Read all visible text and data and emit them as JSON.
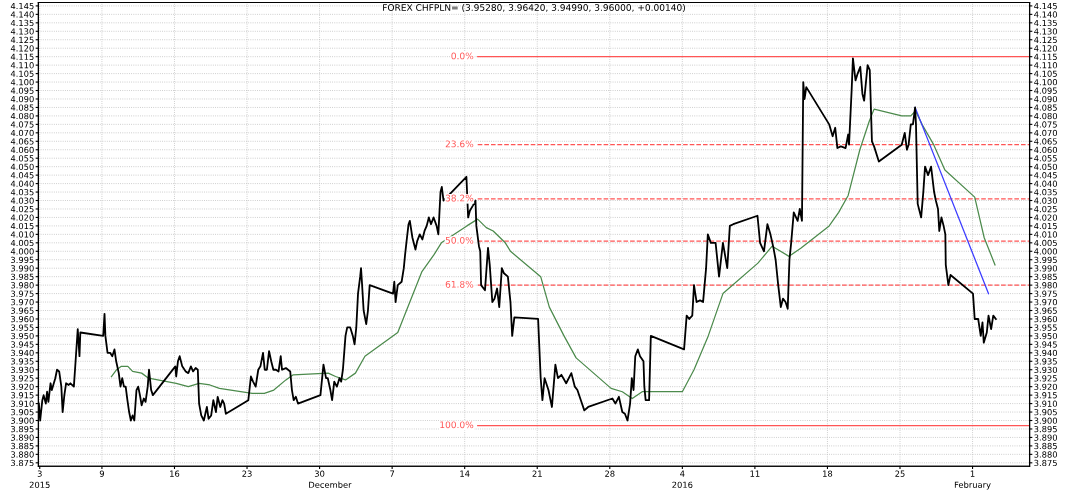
{
  "chart_data": {
    "type": "line",
    "title": "FOREX CHFPLN= (3.95280, 3.96420, 3.94990, 3.96000, +0.00140)",
    "xlim": [
      "2015-11-02T21:00",
      "2016-02-06T12:00"
    ],
    "xticks": [
      {
        "value": "2015-11-03",
        "label": "3"
      },
      {
        "value": "2015-11-09",
        "label": "9"
      },
      {
        "value": "2015-11-16",
        "label": "16"
      },
      {
        "value": "2015-11-23",
        "label": "23"
      },
      {
        "value": "2015-11-30",
        "label": "30"
      },
      {
        "value": "2015-12-07",
        "label": "7"
      },
      {
        "value": "2015-12-14",
        "label": "14"
      },
      {
        "value": "2015-12-21",
        "label": "21"
      },
      {
        "value": "2015-12-28",
        "label": "28"
      },
      {
        "value": "2016-01-04",
        "label": "4"
      },
      {
        "value": "2016-01-11",
        "label": "11"
      },
      {
        "value": "2016-01-18",
        "label": "18"
      },
      {
        "value": "2016-01-25",
        "label": "25"
      },
      {
        "value": "2016-02-01",
        "label": "1"
      }
    ],
    "x2lim": [
      "2015-11-02T21:00",
      "2016-02-06T12:00"
    ],
    "x2ticks": [
      {
        "value": "2015-11-03",
        "label": "2015"
      },
      {
        "value": "2015-12-01",
        "label": "December"
      },
      {
        "value": "2016-01-04",
        "label": "2016"
      },
      {
        "value": "2016-02-01",
        "label": "February"
      }
    ],
    "ylim": [
      3.873,
      4.147
    ],
    "yticks": [
      3.875,
      {
        "value": 3.88,
        "label": "3.880"
      },
      3.885,
      {
        "value": 3.89,
        "label": "3.890"
      },
      3.895,
      {
        "value": 3.9,
        "label": "3.900"
      },
      3.905,
      {
        "value": 3.91,
        "label": "3.910"
      },
      3.915,
      {
        "value": 3.92,
        "label": "3.920"
      },
      3.925,
      {
        "value": 3.93,
        "label": "3.930"
      },
      3.935,
      {
        "value": 3.94,
        "label": "3.940"
      },
      3.945,
      {
        "value": 3.95,
        "label": "3.950"
      },
      3.955,
      {
        "value": 3.96,
        "label": "3.960"
      },
      3.965,
      {
        "value": 3.97,
        "label": "3.970"
      },
      3.975,
      {
        "value": 3.98,
        "label": "3.980"
      },
      3.985,
      {
        "value": 3.99,
        "label": "3.990"
      },
      3.995,
      {
        "value": 4.0,
        "label": "4.000"
      },
      4.005,
      {
        "value": 4.01,
        "label": "4.010"
      },
      4.015,
      {
        "value": 4.02,
        "label": "4.020"
      },
      4.025,
      {
        "value": 4.03,
        "label": "4.030"
      },
      4.035,
      {
        "value": 4.04,
        "label": "4.040"
      },
      4.045,
      {
        "value": 4.05,
        "label": "4.050"
      },
      4.055,
      {
        "value": 4.06,
        "label": "4.060"
      },
      4.065,
      {
        "value": 4.07,
        "label": "4.070"
      },
      4.075,
      {
        "value": 4.08,
        "label": "4.080"
      },
      4.085,
      {
        "value": 4.09,
        "label": "4.090"
      },
      4.095,
      {
        "value": 4.1,
        "label": "4.100"
      },
      4.105,
      {
        "value": 4.11,
        "label": "4.110"
      },
      4.115,
      {
        "value": 4.12,
        "label": "4.120"
      },
      4.125,
      {
        "value": 4.13,
        "label": "4.130"
      },
      4.135,
      {
        "value": 4.14,
        "label": "4.140"
      },
      4.145
    ],
    "y2lim": [
      3.873,
      4.147
    ],
    "y2ticks": [
      3.875,
      {
        "value": 3.88,
        "label": "3.880"
      },
      3.885,
      {
        "value": 3.89,
        "label": "3.890"
      },
      3.895,
      {
        "value": 3.9,
        "label": "3.900"
      },
      3.905,
      {
        "value": 3.91,
        "label": "3.910"
      },
      3.915,
      {
        "value": 3.92,
        "label": "3.920"
      },
      3.925,
      {
        "value": 3.93,
        "label": "3.930"
      },
      3.935,
      {
        "value": 3.94,
        "label": "3.940"
      },
      3.945,
      {
        "value": 3.95,
        "label": "3.950"
      },
      3.955,
      {
        "value": 3.96,
        "label": "3.960"
      },
      3.965,
      {
        "value": 3.97,
        "label": "3.970"
      },
      3.975,
      {
        "value": 3.98,
        "label": "3.980"
      },
      3.985,
      {
        "value": 3.99,
        "label": "3.990"
      },
      3.995,
      {
        "value": 4.0,
        "label": "4.000"
      },
      4.005,
      {
        "value": 4.01,
        "label": "4.010"
      },
      4.015,
      {
        "value": 4.02,
        "label": "4.020"
      },
      4.025,
      {
        "value": 4.03,
        "label": "4.030"
      },
      4.035,
      {
        "value": 4.04,
        "label": "4.040"
      },
      4.045,
      {
        "value": 4.05,
        "label": "4.050"
      },
      4.055,
      {
        "value": 4.06,
        "label": "4.060"
      },
      4.065,
      {
        "value": 4.07,
        "label": "4.070"
      },
      4.075,
      {
        "value": 4.08,
        "label": "4.080"
      },
      4.085,
      {
        "value": 4.09,
        "label": "4.090"
      },
      4.095,
      {
        "value": 4.1,
        "label": "4.100"
      },
      4.105,
      {
        "value": 4.11,
        "label": "4.110"
      },
      4.115,
      {
        "value": 4.12,
        "label": "4.120"
      },
      4.125,
      {
        "value": 4.13,
        "label": "4.130"
      },
      4.135,
      {
        "value": 4.14,
        "label": "4.140"
      },
      4.145
    ],
    "grid": true,
    "marker": "none",
    "line_style": "solid",
    "series": [
      {
        "color": "#000000",
        "x": [
          "2015-11-02T22:00",
          "2015-11-03T01:00",
          "2015-11-03T06:00",
          "2015-11-03T09:00",
          "2015-11-03T14:00",
          "2015-11-03T17:00",
          "2015-11-03T20:00",
          "2015-11-04T01:00",
          "2015-11-04T04:00",
          "2015-11-04T12:00",
          "2015-11-04T16:00",
          "2015-11-04T21:00",
          "2015-11-05T02:00",
          "2015-11-05T05:00",
          "2015-11-05T09:00",
          "2015-11-05T13:00",
          "2015-11-05T19:00",
          "2015-11-05T23:00",
          "2015-11-06T07:00",
          "2015-11-06T11:00",
          "2015-11-06T16:00",
          "2015-11-06T20:00",
          "2015-11-06T22:00",
          "2015-11-09T03:00",
          "2015-11-09T06:00",
          "2015-11-09T08:00",
          "2015-11-09T13:00",
          "2015-11-09T19:00",
          "2015-11-10T00:00",
          "2015-11-10T05:00",
          "2015-11-10T09:00",
          "2015-11-10T15:00",
          "2015-11-10T19:00",
          "2015-11-10T23:00",
          "2015-11-11T03:00",
          "2015-11-11T07:00",
          "2015-11-11T11:00",
          "2015-11-11T15:00",
          "2015-11-11T19:00",
          "2015-11-11T23:00",
          "2015-11-12T03:00",
          "2015-11-12T08:00",
          "2015-11-12T12:00",
          "2015-11-12T16:00",
          "2015-11-12T20:00",
          "2015-11-13T01:00",
          "2015-11-13T05:00",
          "2015-11-13T10:00",
          "2015-11-13T13:00",
          "2015-11-13T18:00",
          "2015-11-13T22:00",
          "2015-11-16T02:00",
          "2015-11-16T04:00",
          "2015-11-16T08:00",
          "2015-11-16T12:00",
          "2015-11-16T18:00",
          "2015-11-17T02:00",
          "2015-11-17T08:00",
          "2015-11-17T14:00",
          "2015-11-17T19:00",
          "2015-11-18T01:00",
          "2015-11-18T06:00",
          "2015-11-18T09:00",
          "2015-11-18T14:00",
          "2015-11-18T20:00",
          "2015-11-19T03:00",
          "2015-11-19T07:00",
          "2015-11-19T13:00",
          "2015-11-19T18:00",
          "2015-11-20T00:00",
          "2015-11-20T04:00",
          "2015-11-20T10:00",
          "2015-11-20T15:00",
          "2015-11-20T19:00",
          "2015-11-20T23:00",
          "2015-11-23T03:00",
          "2015-11-23T09:00",
          "2015-11-23T14:00",
          "2015-11-23T20:00",
          "2015-11-24T02:00",
          "2015-11-24T07:00",
          "2015-11-24T13:00",
          "2015-11-24T17:00",
          "2015-11-24T22:00",
          "2015-11-25T03:00",
          "2015-11-25T08:00",
          "2015-11-25T13:00",
          "2015-11-25T19:00",
          "2015-11-26T01:00",
          "2015-11-26T06:00",
          "2015-11-26T09:00",
          "2015-11-26T18:00",
          "2015-11-27T04:00",
          "2015-11-27T08:00",
          "2015-11-27T12:00",
          "2015-11-27T17:00",
          "2015-11-27T22:00",
          "2015-11-30T02:00",
          "2015-11-30T09:00",
          "2015-11-30T15:00",
          "2015-11-30T19:00",
          "2015-12-01T01:00",
          "2015-12-01T05:00",
          "2015-12-01T10:00",
          "2015-12-01T16:00",
          "2015-12-01T22:00",
          "2015-12-02T02:00",
          "2015-12-02T06:00",
          "2015-12-02T12:00",
          "2015-12-02T16:00",
          "2015-12-02T23:00",
          "2015-12-03T05:00",
          "2015-12-03T09:00",
          "2015-12-03T13:00",
          "2015-12-03T17:00",
          "2015-12-03T22:00",
          "2015-12-04T00:00",
          "2015-12-04T02:00",
          "2015-12-04T06:00",
          "2015-12-04T12:00",
          "2015-12-04T16:00",
          "2015-12-04T20:00",
          "2015-12-07T02:00",
          "2015-12-07T05:00",
          "2015-12-07T08:00",
          "2015-12-07T13:00",
          "2015-12-07T22:00",
          "2015-12-08T03:00",
          "2015-12-08T06:00",
          "2015-12-08T09:00",
          "2015-12-08T14:00",
          "2015-12-08T17:00",
          "2015-12-08T23:00",
          "2015-12-09T06:00",
          "2015-12-09T10:00",
          "2015-12-09T16:00",
          "2015-12-09T22:00",
          "2015-12-10T03:00",
          "2015-12-10T08:00",
          "2015-12-10T13:00",
          "2015-12-10T18:00",
          "2015-12-11T00:00",
          "2015-12-11T07:00",
          "2015-12-11T11:00",
          "2015-12-11T16:00",
          "2015-12-11T19:00",
          "2015-12-11T23:00",
          "2015-12-14T04:00",
          "2015-12-14T08:00",
          "2015-12-14T12:00",
          "2015-12-14T19:00",
          "2015-12-15T01:00",
          "2015-12-15T03:00",
          "2015-12-15T09:00",
          "2015-12-15T12:00",
          "2015-12-15T14:00",
          "2015-12-15T23:00",
          "2015-12-16T06:00",
          "2015-12-16T10:00",
          "2015-12-16T16:00",
          "2015-12-16T21:00",
          "2015-12-17T03:00",
          "2015-12-17T08:00",
          "2015-12-17T14:00",
          "2015-12-17T19:00",
          "2015-12-18T04:00",
          "2015-12-18T10:00",
          "2015-12-18T14:00",
          "2015-12-18T19:00",
          "2015-12-21T02:00",
          "2015-12-21T08:00",
          "2015-12-21T12:00",
          "2015-12-21T17:00",
          "2015-12-22T02:00",
          "2015-12-22T10:00",
          "2015-12-22T18:00",
          "2015-12-23T00:00",
          "2015-12-23T08:00",
          "2015-12-23T19:00",
          "2015-12-24T07:00",
          "2015-12-24T15:00",
          "2015-12-24T21:00",
          "2015-12-25T05:00",
          "2015-12-25T13:00",
          "2015-12-25T22:00",
          "2015-12-28T06:00",
          "2015-12-28T13:00",
          "2015-12-28T21:00",
          "2015-12-29T05:00",
          "2015-12-29T11:00",
          "2015-12-29T17:00",
          "2015-12-29T23:00",
          "2015-12-30T03:00",
          "2015-12-30T07:00",
          "2015-12-30T11:00",
          "2015-12-30T17:00",
          "2015-12-30T22:00",
          "2015-12-31T06:00",
          "2015-12-31T08:00",
          "2015-12-31T11:00",
          "2015-12-31T19:00",
          "2015-12-31T23:00",
          "2016-01-04T04:00",
          "2016-01-04T10:00",
          "2016-01-04T16:00",
          "2016-01-04T23:00",
          "2016-01-05T03:00",
          "2016-01-05T09:00",
          "2016-01-05T17:00",
          "2016-01-06T00:00",
          "2016-01-06T07:00",
          "2016-01-06T11:00",
          "2016-01-06T18:00",
          "2016-01-07T05:00",
          "2016-01-07T13:00",
          "2016-01-07T22:00",
          "2016-01-08T08:00",
          "2016-01-08T14:00",
          "2016-01-08T22:00",
          "2016-01-11T06:00",
          "2016-01-11T12:00",
          "2016-01-11T21:00",
          "2016-01-12T05:00",
          "2016-01-12T12:00",
          "2016-01-12T19:00",
          "2016-01-13T00:00",
          "2016-01-13T06:00",
          "2016-01-13T12:00",
          "2016-01-13T17:00",
          "2016-01-13T23:00",
          "2016-01-14T04:00",
          "2016-01-14T08:00",
          "2016-01-14T12:00",
          "2016-01-14T18:00",
          "2016-01-15T03:00",
          "2016-01-15T08:00",
          "2016-01-15T13:00",
          "2016-01-15T16:00",
          "2016-01-15T19:00",
          "2016-01-15T23:00",
          "2016-01-18T04:00",
          "2016-01-18T12:00",
          "2016-01-18T18:00",
          "2016-01-18T23:00",
          "2016-01-19T07:00",
          "2016-01-19T18:00",
          "2016-01-20T00:00",
          "2016-01-20T02:00",
          "2016-01-20T08:00",
          "2016-01-20T11:00",
          "2016-01-20T17:00",
          "2016-01-20T22:00",
          "2016-01-21T04:00",
          "2016-01-21T09:00",
          "2016-01-21T13:00",
          "2016-01-21T21:00",
          "2016-01-22T02:00",
          "2016-01-22T07:00",
          "2016-01-22T12:00",
          "2016-01-22T23:00",
          "2016-01-25T04:00",
          "2016-01-25T11:00",
          "2016-01-25T16:00",
          "2016-01-25T20:00",
          "2016-01-26T01:00",
          "2016-01-26T06:00",
          "2016-01-26T11:00",
          "2016-01-26T13:00",
          "2016-01-26T17:00",
          "2016-01-27T01:00",
          "2016-01-27T06:00",
          "2016-01-27T10:00",
          "2016-01-27T17:00",
          "2016-01-28T00:00",
          "2016-01-28T07:00",
          "2016-01-28T11:00",
          "2016-01-28T16:00",
          "2016-01-28T19:00",
          "2016-01-29T00:00",
          "2016-01-29T05:00",
          "2016-01-29T09:00",
          "2016-01-29T10:00",
          "2016-01-29T16:00",
          "2016-01-29T21:00",
          "2016-02-01T01:00",
          "2016-02-01T05:00",
          "2016-02-01T13:00",
          "2016-02-01T19:00",
          "2016-02-01T23:00",
          "2016-02-02T02:00",
          "2016-02-02T09:00",
          "2016-02-02T13:00",
          "2016-02-02T19:00",
          "2016-02-03T00:00",
          "2016-02-03T06:00"
        ],
        "values": [
          3.91,
          3.9,
          3.912,
          3.915,
          3.91,
          3.917,
          3.911,
          3.922,
          3.918,
          3.925,
          3.93,
          3.929,
          3.92,
          3.905,
          3.915,
          3.922,
          3.921,
          3.922,
          3.92,
          3.935,
          3.954,
          3.938,
          3.952,
          3.95,
          3.963,
          3.95,
          3.94,
          3.94,
          3.938,
          3.942,
          3.935,
          3.928,
          3.92,
          3.925,
          3.92,
          3.92,
          3.912,
          3.905,
          3.9,
          3.903,
          3.9,
          3.918,
          3.92,
          3.915,
          3.909,
          3.913,
          3.911,
          3.92,
          3.93,
          3.918,
          3.915,
          3.932,
          3.926,
          3.935,
          3.938,
          3.932,
          3.929,
          3.928,
          3.932,
          3.929,
          3.931,
          3.93,
          3.91,
          3.903,
          3.9,
          3.908,
          3.901,
          3.903,
          3.912,
          3.905,
          3.914,
          3.908,
          3.912,
          3.91,
          3.904,
          3.912,
          3.926,
          3.923,
          3.92,
          3.93,
          3.932,
          3.94,
          3.93,
          3.93,
          3.941,
          3.935,
          3.93,
          3.93,
          3.929,
          3.938,
          3.93,
          3.931,
          3.929,
          3.918,
          3.912,
          3.914,
          3.91,
          3.915,
          3.933,
          3.925,
          3.925,
          3.918,
          3.912,
          3.923,
          3.92,
          3.925,
          3.923,
          3.93,
          3.95,
          3.955,
          3.955,
          3.95,
          3.945,
          3.955,
          3.975,
          3.985,
          3.99,
          3.982,
          3.965,
          3.957,
          3.965,
          3.98,
          3.975,
          3.982,
          3.97,
          3.98,
          3.982,
          3.99,
          3.998,
          4.005,
          4.016,
          4.018,
          4.008,
          4.001,
          4.006,
          4.01,
          4.007,
          4.012,
          4.015,
          4.02,
          4.016,
          4.02,
          4.015,
          4.01,
          4.035,
          4.038,
          4.03,
          4.044,
          4.02,
          4.024,
          4.027,
          4.03,
          4.015,
          4.003,
          4.0,
          3.98,
          3.977,
          4.002,
          3.992,
          3.97,
          3.972,
          3.978,
          3.967,
          3.99,
          3.987,
          3.985,
          3.97,
          3.95,
          3.961,
          3.96,
          3.925,
          3.912,
          3.925,
          3.918,
          3.908,
          3.933,
          3.925,
          3.927,
          3.922,
          3.928,
          3.92,
          3.918,
          3.912,
          3.906,
          3.908,
          3.913,
          3.91,
          3.914,
          3.905,
          3.904,
          3.9,
          3.91,
          3.925,
          3.918,
          3.938,
          3.942,
          3.938,
          3.935,
          3.92,
          3.912,
          3.912,
          3.95,
          3.942,
          3.962,
          3.96,
          3.962,
          3.98,
          3.97,
          3.971,
          3.97,
          3.99,
          4.01,
          4.005,
          4.005,
          3.985,
          4.005,
          3.99,
          4.015,
          4.016,
          4.021,
          4.005,
          4.0,
          4.016,
          4.01,
          4.002,
          3.995,
          3.98,
          3.967,
          3.972,
          3.97,
          3.966,
          3.995,
          4.005,
          4.023,
          4.018,
          4.025,
          4.018,
          4.1,
          4.09,
          4.097,
          4.075,
          4.068,
          4.073,
          4.061,
          4.062,
          4.061,
          4.069,
          4.063,
          4.095,
          4.114,
          4.101,
          4.105,
          4.109,
          4.093,
          4.089,
          4.11,
          4.107,
          4.065,
          4.062,
          4.053,
          4.063,
          4.07,
          4.06,
          4.063,
          4.075,
          4.075,
          4.085,
          4.075,
          4.028,
          4.02,
          4.035,
          4.05,
          4.045,
          4.05,
          4.035,
          4.03,
          4.025,
          4.012,
          4.02,
          4.015,
          4.01,
          3.992,
          3.98,
          3.986,
          3.975,
          3.96,
          3.96,
          3.95,
          3.958,
          3.946,
          3.952,
          3.962,
          3.954,
          3.962,
          3.96
        ]
      },
      {
        "color": "#4c8a4c",
        "x": [
          "2015-11-09T22:00",
          "2015-11-10T10:00",
          "2015-11-10T21:00",
          "2015-11-11T12:00",
          "2015-11-11T23:00",
          "2015-11-12T20:00",
          "2015-11-13T12:00",
          "2015-11-16T04:00",
          "2015-11-17T08:00",
          "2015-11-18T09:00",
          "2015-11-19T10:00",
          "2015-11-20T08:00",
          "2015-11-23T12:00",
          "2015-11-24T16:00",
          "2015-11-25T14:00",
          "2015-11-26T18:00",
          "2015-11-27T11:00",
          "2015-11-30T20:00",
          "2015-12-01T13:00",
          "2015-12-02T12:00",
          "2015-12-03T11:00",
          "2015-12-04T09:00",
          "2015-12-07T13:00",
          "2015-12-08T17:00",
          "2015-12-09T21:00",
          "2015-12-11T01:00",
          "2015-12-11T18:00",
          "2015-12-14T05:00",
          "2015-12-15T06:00",
          "2015-12-16T02:00",
          "2015-12-16T18:00",
          "2015-12-17T22:00",
          "2015-12-18T10:00",
          "2015-12-21T08:00",
          "2015-12-22T04:00",
          "2015-12-23T14:00",
          "2015-12-24T18:00",
          "2015-12-28T03:00",
          "2015-12-29T05:00",
          "2015-12-30T04:00",
          "2015-12-31T03:00",
          "2016-01-04T00:00",
          "2016-01-05T03:00",
          "2016-01-06T12:00",
          "2016-01-07T22:00",
          "2016-01-11T07:00",
          "2016-01-12T16:00",
          "2016-01-14T07:00",
          "2016-01-15T11:00",
          "2016-01-18T04:00",
          "2016-01-19T02:00",
          "2016-01-20T00:00",
          "2016-01-21T03:00",
          "2016-01-22T01:00",
          "2016-01-22T12:00",
          "2016-01-25T04:00",
          "2016-01-26T01:00",
          "2016-01-26T12:00",
          "2016-01-27T03:00",
          "2016-01-28T06:00",
          "2016-01-29T08:00",
          "2016-02-01T05:00",
          "2016-02-02T03:00",
          "2016-02-03T04:00"
        ],
        "values": [
          3.926,
          3.93,
          3.932,
          3.932,
          3.929,
          3.928,
          3.925,
          3.922,
          3.92,
          3.922,
          3.921,
          3.919,
          3.916,
          3.916,
          3.918,
          3.924,
          3.927,
          3.928,
          3.926,
          3.924,
          3.928,
          3.938,
          3.952,
          3.97,
          3.988,
          3.998,
          4.005,
          4.015,
          4.019,
          4.014,
          4.012,
          4.005,
          4.0,
          3.985,
          3.967,
          3.95,
          3.937,
          3.919,
          3.917,
          3.913,
          3.917,
          3.917,
          3.93,
          3.95,
          3.975,
          3.993,
          4.003,
          3.997,
          4.002,
          4.015,
          4.023,
          4.033,
          4.06,
          4.077,
          4.084,
          4.08,
          4.08,
          4.083,
          4.075,
          4.063,
          4.048,
          4.032,
          4.008,
          3.992
        ]
      },
      {
        "color": "#3a3aff",
        "x": [
          "2016-01-26T11:00",
          "2016-02-02T13:00"
        ],
        "values": [
          4.085,
          3.975
        ]
      }
    ],
    "ref_lines": [
      {
        "axis": "y",
        "value": 4.115,
        "color": "#ff5555",
        "line_style": "solid"
      },
      {
        "axis": "y",
        "value": 4.063,
        "color": "#ff5555",
        "line_style": "dashed"
      },
      {
        "axis": "y",
        "value": 4.031,
        "color": "#ff5555",
        "line_style": "dashed"
      },
      {
        "axis": "y",
        "value": 4.006,
        "color": "#ff5555",
        "line_style": "dashed"
      },
      {
        "axis": "y",
        "value": 3.98,
        "color": "#ff5555",
        "line_style": "dashed"
      },
      {
        "axis": "y",
        "value": 3.897,
        "color": "#ff5555",
        "line_style": "solid"
      }
    ],
    "annotations": [
      {
        "text": "0.0%",
        "x": "2015-12-14T21:00",
        "y": 4.115
      },
      {
        "text": "23.6%",
        "x": "2015-12-14T21:00",
        "y": 4.063
      },
      {
        "text": "38.2%",
        "x": "2015-12-14T21:00",
        "y": 4.031
      },
      {
        "text": "50.0%",
        "x": "2015-12-14T21:00",
        "y": 4.006
      },
      {
        "text": "61.8%",
        "x": "2015-12-14T21:00",
        "y": 3.98
      },
      {
        "text": "100.0%",
        "x": "2015-12-14T21:00",
        "y": 3.897
      }
    ]
  }
}
